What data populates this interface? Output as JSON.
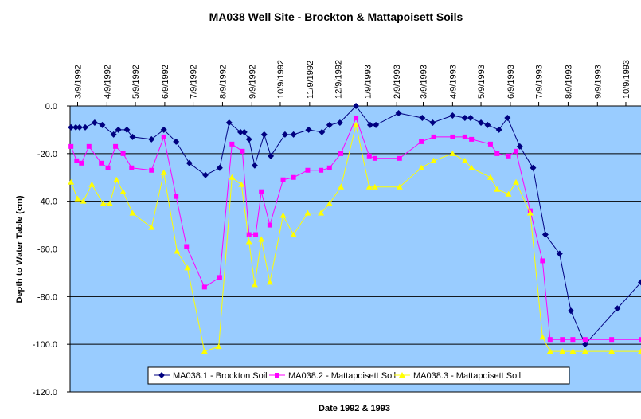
{
  "chart_data": {
    "type": "line",
    "title": "MA038 Well Site - Brockton & Mattapoisett Soils",
    "xlabel": "Date 1992 & 1993",
    "ylabel": "Depth to Water Table (cm)",
    "xlim": [
      "1992-03-01",
      "1993-10-25"
    ],
    "ylim": [
      -120,
      0
    ],
    "y_ticks": [
      0,
      -20,
      -40,
      -60,
      -80,
      -100,
      -120
    ],
    "y_tick_labels": [
      "0.0",
      "-20.0",
      "-40.0",
      "-60.0",
      "-80.0",
      "-100.0",
      "-120.0"
    ],
    "x_ticks": [
      "1992-03-09",
      "1992-04-09",
      "1992-05-09",
      "1992-06-09",
      "1992-07-09",
      "1992-08-09",
      "1992-09-09",
      "1992-10-09",
      "1992-11-09",
      "1992-12-09",
      "1993-01-09",
      "1993-02-09",
      "1993-03-09",
      "1993-04-09",
      "1993-05-09",
      "1993-06-09",
      "1993-07-09",
      "1993-08-09",
      "1993-09-09",
      "1993-10-09"
    ],
    "x_tick_labels": [
      "3/9/1992",
      "4/9/1992",
      "5/9/1992",
      "6/9/1992",
      "7/9/1992",
      "8/9/1992",
      "9/9/1992",
      "10/9/1992",
      "11/9/1992",
      "12/9/1992",
      "1/9/1993",
      "2/9/1993",
      "3/9/1993",
      "4/9/1993",
      "5/9/1993",
      "6/9/1993",
      "7/9/1993",
      "8/9/1993",
      "9/9/1993",
      "10/9/1993"
    ],
    "grid": "horizontal",
    "background_color": "#99CCFF",
    "legend_position": "bottom",
    "series": [
      {
        "name": "MA038.1 - Brockton Soil",
        "color": "#000080",
        "marker": "diamond",
        "points": [
          [
            "1992-03-02",
            -9
          ],
          [
            "1992-03-07",
            -9
          ],
          [
            "1992-03-11",
            -9
          ],
          [
            "1992-03-17",
            -9
          ],
          [
            "1992-03-27",
            -7
          ],
          [
            "1992-04-04",
            -8
          ],
          [
            "1992-04-16",
            -12
          ],
          [
            "1992-04-21",
            -10
          ],
          [
            "1992-04-30",
            -10
          ],
          [
            "1992-05-06",
            -13
          ],
          [
            "1992-05-26",
            -14
          ],
          [
            "1992-06-08",
            -10
          ],
          [
            "1992-06-21",
            -15
          ],
          [
            "1992-07-05",
            -24
          ],
          [
            "1992-07-22",
            -29
          ],
          [
            "1992-08-06",
            -26
          ],
          [
            "1992-08-16",
            -7
          ],
          [
            "1992-08-28",
            -11
          ],
          [
            "1992-09-01",
            -11
          ],
          [
            "1992-09-06",
            -14
          ],
          [
            "1992-09-12",
            -25
          ],
          [
            "1992-09-22",
            -12
          ],
          [
            "1992-09-29",
            -21
          ],
          [
            "1992-10-14",
            -12
          ],
          [
            "1992-10-23",
            -12
          ],
          [
            "1992-11-08",
            -10
          ],
          [
            "1992-11-22",
            -11
          ],
          [
            "1992-11-30",
            -8
          ],
          [
            "1992-12-11",
            -7
          ],
          [
            "1992-12-28",
            0
          ],
          [
            "1993-01-12",
            -8
          ],
          [
            "1993-01-18",
            -8
          ],
          [
            "1993-02-11",
            -3
          ],
          [
            "1993-03-08",
            -5
          ],
          [
            "1993-03-19",
            -7
          ],
          [
            "1993-04-09",
            -4
          ],
          [
            "1993-04-22",
            -5
          ],
          [
            "1993-04-28",
            -5
          ],
          [
            "1993-05-09",
            -7
          ],
          [
            "1993-05-16",
            -8
          ],
          [
            "1993-05-28",
            -10
          ],
          [
            "1993-06-06",
            -5
          ],
          [
            "1993-06-19",
            -17
          ],
          [
            "1993-07-03",
            -26
          ],
          [
            "1993-07-16",
            -54
          ],
          [
            "1993-07-31",
            -62
          ],
          [
            "1993-08-12",
            -86
          ],
          [
            "1993-08-27",
            -100
          ],
          [
            "1993-09-30",
            -85
          ],
          [
            "1993-10-25",
            -74
          ]
        ]
      },
      {
        "name": "MA038.2 - Mattapoisett Soil",
        "color": "#FF00FF",
        "marker": "square",
        "points": [
          [
            "1992-03-02",
            -17
          ],
          [
            "1992-03-08",
            -23
          ],
          [
            "1992-03-13",
            -24
          ],
          [
            "1992-03-21",
            -17
          ],
          [
            "1992-04-03",
            -24
          ],
          [
            "1992-04-10",
            -26
          ],
          [
            "1992-04-18",
            -17
          ],
          [
            "1992-04-26",
            -20
          ],
          [
            "1992-05-05",
            -26
          ],
          [
            "1992-05-26",
            -27
          ],
          [
            "1992-06-08",
            -13
          ],
          [
            "1992-06-21",
            -38
          ],
          [
            "1992-07-02",
            -59
          ],
          [
            "1992-07-21",
            -76
          ],
          [
            "1992-08-06",
            -72
          ],
          [
            "1992-08-19",
            -16
          ],
          [
            "1992-08-30",
            -19
          ],
          [
            "1992-09-06",
            -54
          ],
          [
            "1992-09-13",
            -54
          ],
          [
            "1992-09-19",
            -36
          ],
          [
            "1992-09-28",
            -50
          ],
          [
            "1992-10-12",
            -31
          ],
          [
            "1992-10-23",
            -30
          ],
          [
            "1992-11-07",
            -27
          ],
          [
            "1992-11-21",
            -27
          ],
          [
            "1992-11-30",
            -26
          ],
          [
            "1992-12-12",
            -20
          ],
          [
            "1992-12-28",
            -5
          ],
          [
            "1993-01-11",
            -21
          ],
          [
            "1993-01-17",
            -22
          ],
          [
            "1993-02-12",
            -22
          ],
          [
            "1993-03-07",
            -15
          ],
          [
            "1993-03-20",
            -13
          ],
          [
            "1993-04-09",
            -13
          ],
          [
            "1993-04-22",
            -13
          ],
          [
            "1993-04-29",
            -14
          ],
          [
            "1993-05-19",
            -16
          ],
          [
            "1993-05-26",
            -20
          ],
          [
            "1993-06-07",
            -21
          ],
          [
            "1993-06-15",
            -19
          ],
          [
            "1993-06-30",
            -44
          ],
          [
            "1993-07-13",
            -65
          ],
          [
            "1993-07-21",
            -98
          ],
          [
            "1993-08-03",
            -98
          ],
          [
            "1993-08-14",
            -98
          ],
          [
            "1993-08-27",
            -98
          ],
          [
            "1993-09-24",
            -98
          ],
          [
            "1993-10-25",
            -98
          ]
        ]
      },
      {
        "name": "MA038.3 - Mattapoisett Soil",
        "color": "#FFFF00",
        "marker": "triangle",
        "points": [
          [
            "1992-03-02",
            -32
          ],
          [
            "1992-03-09",
            -39
          ],
          [
            "1992-03-15",
            -40
          ],
          [
            "1992-03-24",
            -33
          ],
          [
            "1992-04-05",
            -41
          ],
          [
            "1992-04-12",
            -41
          ],
          [
            "1992-04-19",
            -31
          ],
          [
            "1992-04-26",
            -36
          ],
          [
            "1992-05-06",
            -45
          ],
          [
            "1992-05-26",
            -51
          ],
          [
            "1992-06-08",
            -28
          ],
          [
            "1992-06-22",
            -61
          ],
          [
            "1992-07-03",
            -68
          ],
          [
            "1992-07-21",
            -103
          ],
          [
            "1992-08-05",
            -101
          ],
          [
            "1992-08-19",
            -30
          ],
          [
            "1992-08-29",
            -33
          ],
          [
            "1992-09-06",
            -57
          ],
          [
            "1992-09-12",
            -75
          ],
          [
            "1992-09-19",
            -56
          ],
          [
            "1992-09-28",
            -74
          ],
          [
            "1992-10-12",
            -46
          ],
          [
            "1992-10-23",
            -54
          ],
          [
            "1992-11-07",
            -45
          ],
          [
            "1992-11-21",
            -45
          ],
          [
            "1992-11-30",
            -41
          ],
          [
            "1992-12-12",
            -34
          ],
          [
            "1992-12-28",
            -8
          ],
          [
            "1993-01-11",
            -34
          ],
          [
            "1993-01-17",
            -34
          ],
          [
            "1993-02-12",
            -34
          ],
          [
            "1993-03-07",
            -26
          ],
          [
            "1993-03-20",
            -23
          ],
          [
            "1993-04-09",
            -20
          ],
          [
            "1993-04-22",
            -23
          ],
          [
            "1993-04-29",
            -26
          ],
          [
            "1993-05-19",
            -30
          ],
          [
            "1993-05-26",
            -35
          ],
          [
            "1993-06-07",
            -37
          ],
          [
            "1993-06-15",
            -32
          ],
          [
            "1993-06-30",
            -45
          ],
          [
            "1993-07-13",
            -97
          ],
          [
            "1993-07-21",
            -103
          ],
          [
            "1993-08-03",
            -103
          ],
          [
            "1993-08-14",
            -103
          ],
          [
            "1993-08-27",
            -103
          ],
          [
            "1993-09-24",
            -103
          ],
          [
            "1993-10-25",
            -103
          ]
        ]
      }
    ]
  }
}
